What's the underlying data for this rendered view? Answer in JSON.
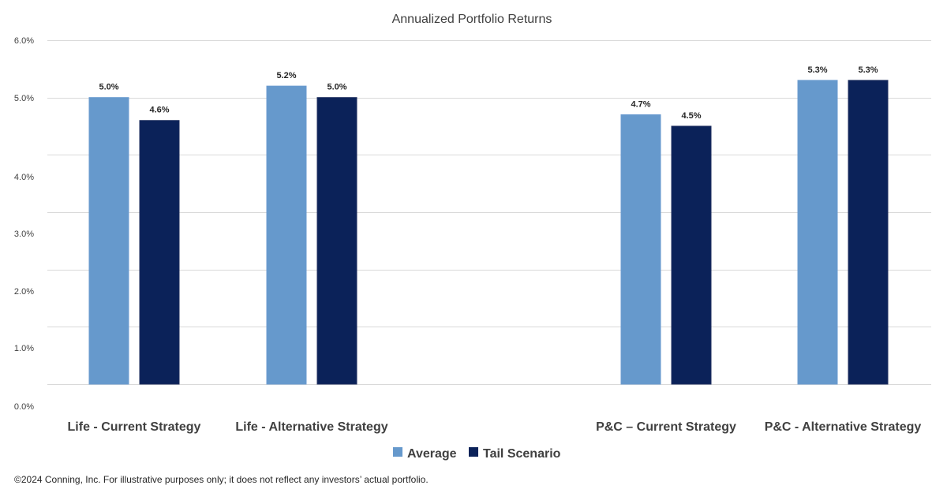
{
  "chart_data": {
    "type": "bar",
    "title": "Annualized Portfolio Returns",
    "xlabel": "",
    "ylabel": "",
    "ylim": [
      0,
      6
    ],
    "yticks": [
      "0.0%",
      "1.0%",
      "2.0%",
      "3.0%",
      "4.0%",
      "5.0%",
      "6.0%"
    ],
    "grid": true,
    "legend_position": "bottom",
    "categories": [
      "Life - Current Strategy",
      "Life - Alternative Strategy",
      "P&C – Current Strategy",
      "P&C - Alternative Strategy"
    ],
    "series": [
      {
        "name": "Average",
        "color": "#6699cc",
        "values": [
          5.0,
          5.2,
          4.7,
          5.3
        ],
        "labels": [
          "5.0%",
          "5.2%",
          "4.7%",
          "5.3%"
        ]
      },
      {
        "name": "Tail Scenario",
        "color": "#0b2259",
        "values": [
          4.6,
          5.0,
          4.5,
          5.3
        ],
        "labels": [
          "4.6%",
          "5.0%",
          "4.5%",
          "5.3%"
        ]
      }
    ]
  },
  "footnote": "©2024 Conning, Inc. For illustrative purposes only; it does not reflect any investors’ actual portfolio."
}
